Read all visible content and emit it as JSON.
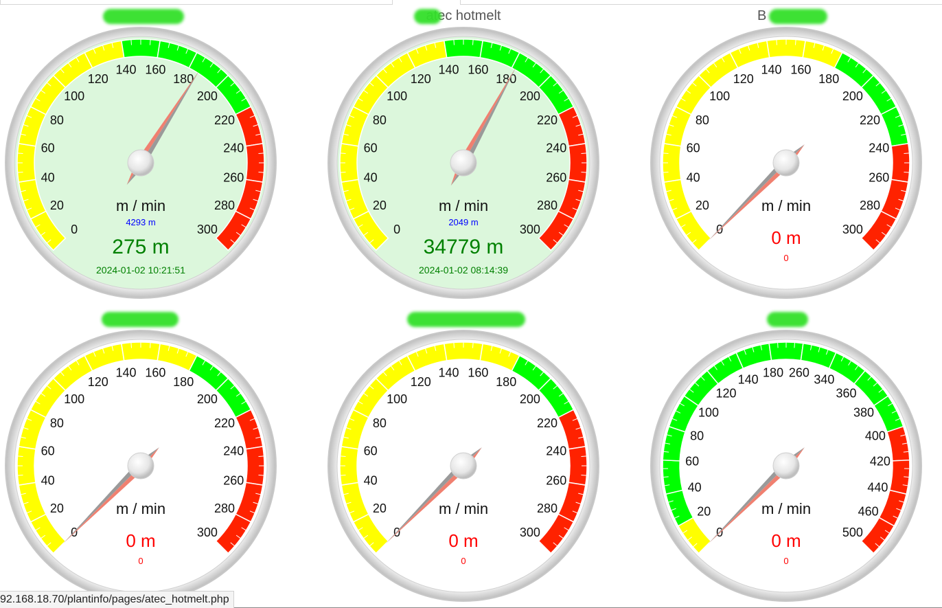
{
  "colors": {
    "yellow": "#ffff00",
    "green": "#00ff00",
    "red": "#ff2200",
    "active_bg": "#dcf7dc",
    "value_ok": "#008000",
    "value_zero": "#ff0000",
    "sub_ok": "#0000ff",
    "needle": "#f08070"
  },
  "gauges": [
    {
      "title": "",
      "active": true,
      "unit": "m / min",
      "ticks": [
        "0",
        "20",
        "40",
        "60",
        "80",
        "100",
        "120",
        "140",
        "160",
        "180",
        "200",
        "220",
        "240",
        "260",
        "280",
        "300"
      ],
      "bands": [
        {
          "from": 0,
          "to": 7,
          "color": "yellow"
        },
        {
          "from": 7,
          "to": 11,
          "color": "green"
        },
        {
          "from": 11,
          "to": 15,
          "color": "red"
        }
      ],
      "needle_value_ticks": 9.3,
      "sub_value": "4293 m",
      "main_value": "275 m",
      "timestamp": "2024-01-02 10:21:51"
    },
    {
      "title": "atec hotmelt",
      "active": true,
      "unit": "m / min",
      "ticks": [
        "0",
        "20",
        "40",
        "60",
        "80",
        "100",
        "120",
        "140",
        "160",
        "180",
        "200",
        "220",
        "240",
        "260",
        "280",
        "300"
      ],
      "bands": [
        {
          "from": 0,
          "to": 7,
          "color": "yellow"
        },
        {
          "from": 7,
          "to": 11,
          "color": "green"
        },
        {
          "from": 11,
          "to": 15,
          "color": "red"
        }
      ],
      "needle_value_ticks": 9.1,
      "sub_value": "2049 m",
      "main_value": "34779 m",
      "timestamp": "2024-01-02 08:14:39"
    },
    {
      "title": "B",
      "active": false,
      "unit": "m / min",
      "ticks": [
        "0",
        "20",
        "40",
        "60",
        "80",
        "100",
        "120",
        "140",
        "160",
        "180",
        "200",
        "220",
        "240",
        "260",
        "280",
        "300"
      ],
      "bands": [
        {
          "from": 0,
          "to": 9,
          "color": "yellow"
        },
        {
          "from": 9,
          "to": 12,
          "color": "green"
        },
        {
          "from": 12,
          "to": 15,
          "color": "red"
        }
      ],
      "needle_value_ticks": 0,
      "sub_value": "0",
      "main_value": "0 m",
      "timestamp": ""
    },
    {
      "title": "",
      "active": false,
      "unit": "m / min",
      "ticks": [
        "0",
        "20",
        "40",
        "60",
        "80",
        "100",
        "120",
        "140",
        "160",
        "180",
        "200",
        "220",
        "240",
        "260",
        "280",
        "300"
      ],
      "bands": [
        {
          "from": 0,
          "to": 9,
          "color": "yellow"
        },
        {
          "from": 9,
          "to": 11,
          "color": "green"
        },
        {
          "from": 11,
          "to": 15,
          "color": "red"
        }
      ],
      "needle_value_ticks": 0,
      "sub_value": "0",
      "main_value": "0 m",
      "timestamp": ""
    },
    {
      "title": "",
      "active": false,
      "unit": "m / min",
      "ticks": [
        "0",
        "20",
        "40",
        "60",
        "80",
        "100",
        "120",
        "140",
        "160",
        "180",
        "200",
        "220",
        "240",
        "260",
        "280",
        "300"
      ],
      "bands": [
        {
          "from": 0,
          "to": 9,
          "color": "yellow"
        },
        {
          "from": 9,
          "to": 11,
          "color": "green"
        },
        {
          "from": 11,
          "to": 15,
          "color": "red"
        }
      ],
      "needle_value_ticks": 0,
      "sub_value": "0",
      "main_value": "0 m",
      "timestamp": ""
    },
    {
      "title": "",
      "active": false,
      "unit": "m / min",
      "ticks": [
        "0",
        "20",
        "40",
        "60",
        "80",
        "100",
        "120",
        "140",
        "180",
        "260",
        "340",
        "360",
        "380",
        "400",
        "420",
        "440",
        "460",
        "500"
      ],
      "bands": [
        {
          "from": 0,
          "to": 1,
          "color": "yellow"
        },
        {
          "from": 1,
          "to": 13,
          "color": "green"
        },
        {
          "from": 13,
          "to": 17,
          "color": "red"
        }
      ],
      "needle_value_ticks": 0,
      "sub_value": "0",
      "main_value": "0 m",
      "timestamp": ""
    }
  ],
  "statusbar": {
    "url": "92.168.18.70/plantinfo/pages/atec_hotmelt.php"
  }
}
